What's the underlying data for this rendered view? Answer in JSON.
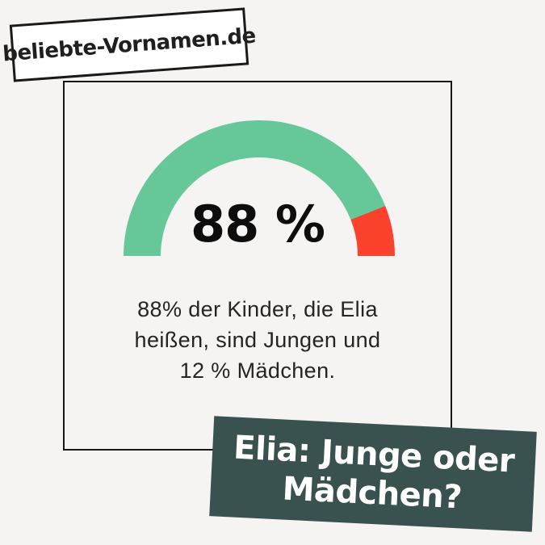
{
  "page": {
    "background": "#f5f4f2",
    "card_border_color": "#161616"
  },
  "stamp": {
    "label": "beliebte-Vornamen.de",
    "background": "#ffffff",
    "border_color": "#1a1a1a"
  },
  "chart_data": {
    "type": "pie",
    "variant": "semicircle-donut-gauge",
    "slices": [
      {
        "label": "Jungen",
        "value": 88,
        "color": "#66c799"
      },
      {
        "label": "Mädchen",
        "value": 12,
        "color": "#fa422d"
      }
    ],
    "total": 100,
    "center_label": "88 %",
    "start_angle_deg": 180,
    "sweep_deg": 180,
    "legend": "none",
    "hole_color": "#f5f4f2"
  },
  "caption": {
    "lines": [
      "88% der Kinder, die Elia",
      "heißen, sind Jungen und",
      "12 % Mädchen."
    ]
  },
  "banner": {
    "lines": [
      "Elia: Junge oder",
      "Mädchen?"
    ],
    "background": "#39524f",
    "text_color": "#ffffff"
  }
}
